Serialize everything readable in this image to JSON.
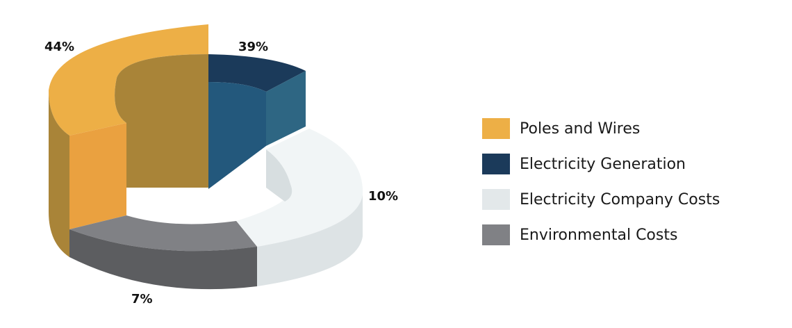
{
  "chart_data": {
    "type": "pie",
    "style": "3d-donut",
    "slices": [
      {
        "label": "Poles and Wires",
        "value": 44,
        "value_label": "44%",
        "color": "#EDAF46"
      },
      {
        "label": "Electricity Generation",
        "value": 39,
        "value_label": "39%",
        "color": "#1B3A5A"
      },
      {
        "label": "Electricity Company Costs",
        "value": 10,
        "value_label": "10%",
        "color": "#E3E8EA"
      },
      {
        "label": "Environmental Costs",
        "value": 7,
        "value_label": "7%",
        "color": "#808185"
      }
    ],
    "legend_position": "right"
  }
}
